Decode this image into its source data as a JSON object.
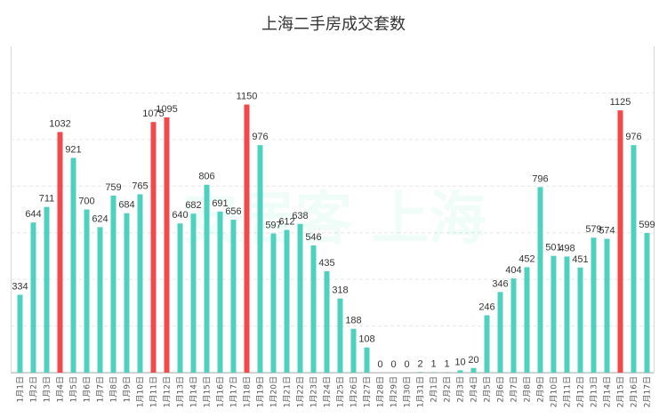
{
  "chart_data": {
    "type": "bar",
    "title": "上海二手房成交套数",
    "xlabel": "",
    "ylabel": "",
    "ylim": [
      0,
      1400
    ],
    "grid": true,
    "legend": "none",
    "categories": [
      "1月1日",
      "1月2日",
      "1月3日",
      "1月4日",
      "1月5日",
      "1月6日",
      "1月7日",
      "1月8日",
      "1月9日",
      "1月10日",
      "1月11日",
      "1月12日",
      "1月13日",
      "1月14日",
      "1月15日",
      "1月16日",
      "1月17日",
      "1月18日",
      "1月19日",
      "1月20日",
      "1月21日",
      "1月22日",
      "1月23日",
      "1月24日",
      "1月25日",
      "1月26日",
      "1月27日",
      "1月28日",
      "1月29日",
      "1月30日",
      "1月31日",
      "2月1日",
      "2月2日",
      "2月3日",
      "2月4日",
      "2月5日",
      "2月6日",
      "2月7日",
      "2月8日",
      "2月9日",
      "2月10日",
      "2月11日",
      "2月12日",
      "2月13日",
      "2月14日",
      "2月15日",
      "2月16日",
      "2月17日"
    ],
    "values": [
      334,
      644,
      711,
      1032,
      921,
      700,
      624,
      759,
      684,
      765,
      1075,
      1095,
      640,
      682,
      806,
      691,
      656,
      1150,
      976,
      597,
      612,
      638,
      546,
      435,
      318,
      188,
      108,
      0,
      0,
      0,
      2,
      1,
      1,
      10,
      20,
      246,
      346,
      404,
      452,
      796,
      501,
      498,
      451,
      579,
      574,
      1125,
      976,
      599
    ],
    "highlight": [
      3,
      10,
      11,
      17,
      45
    ],
    "colors": {
      "bar": "#4fd1c0",
      "highlight": "#f24a4a",
      "grid": "#e6e6e6",
      "label": "#333333"
    }
  },
  "watermark": {
    "text": "安居客 上海"
  }
}
